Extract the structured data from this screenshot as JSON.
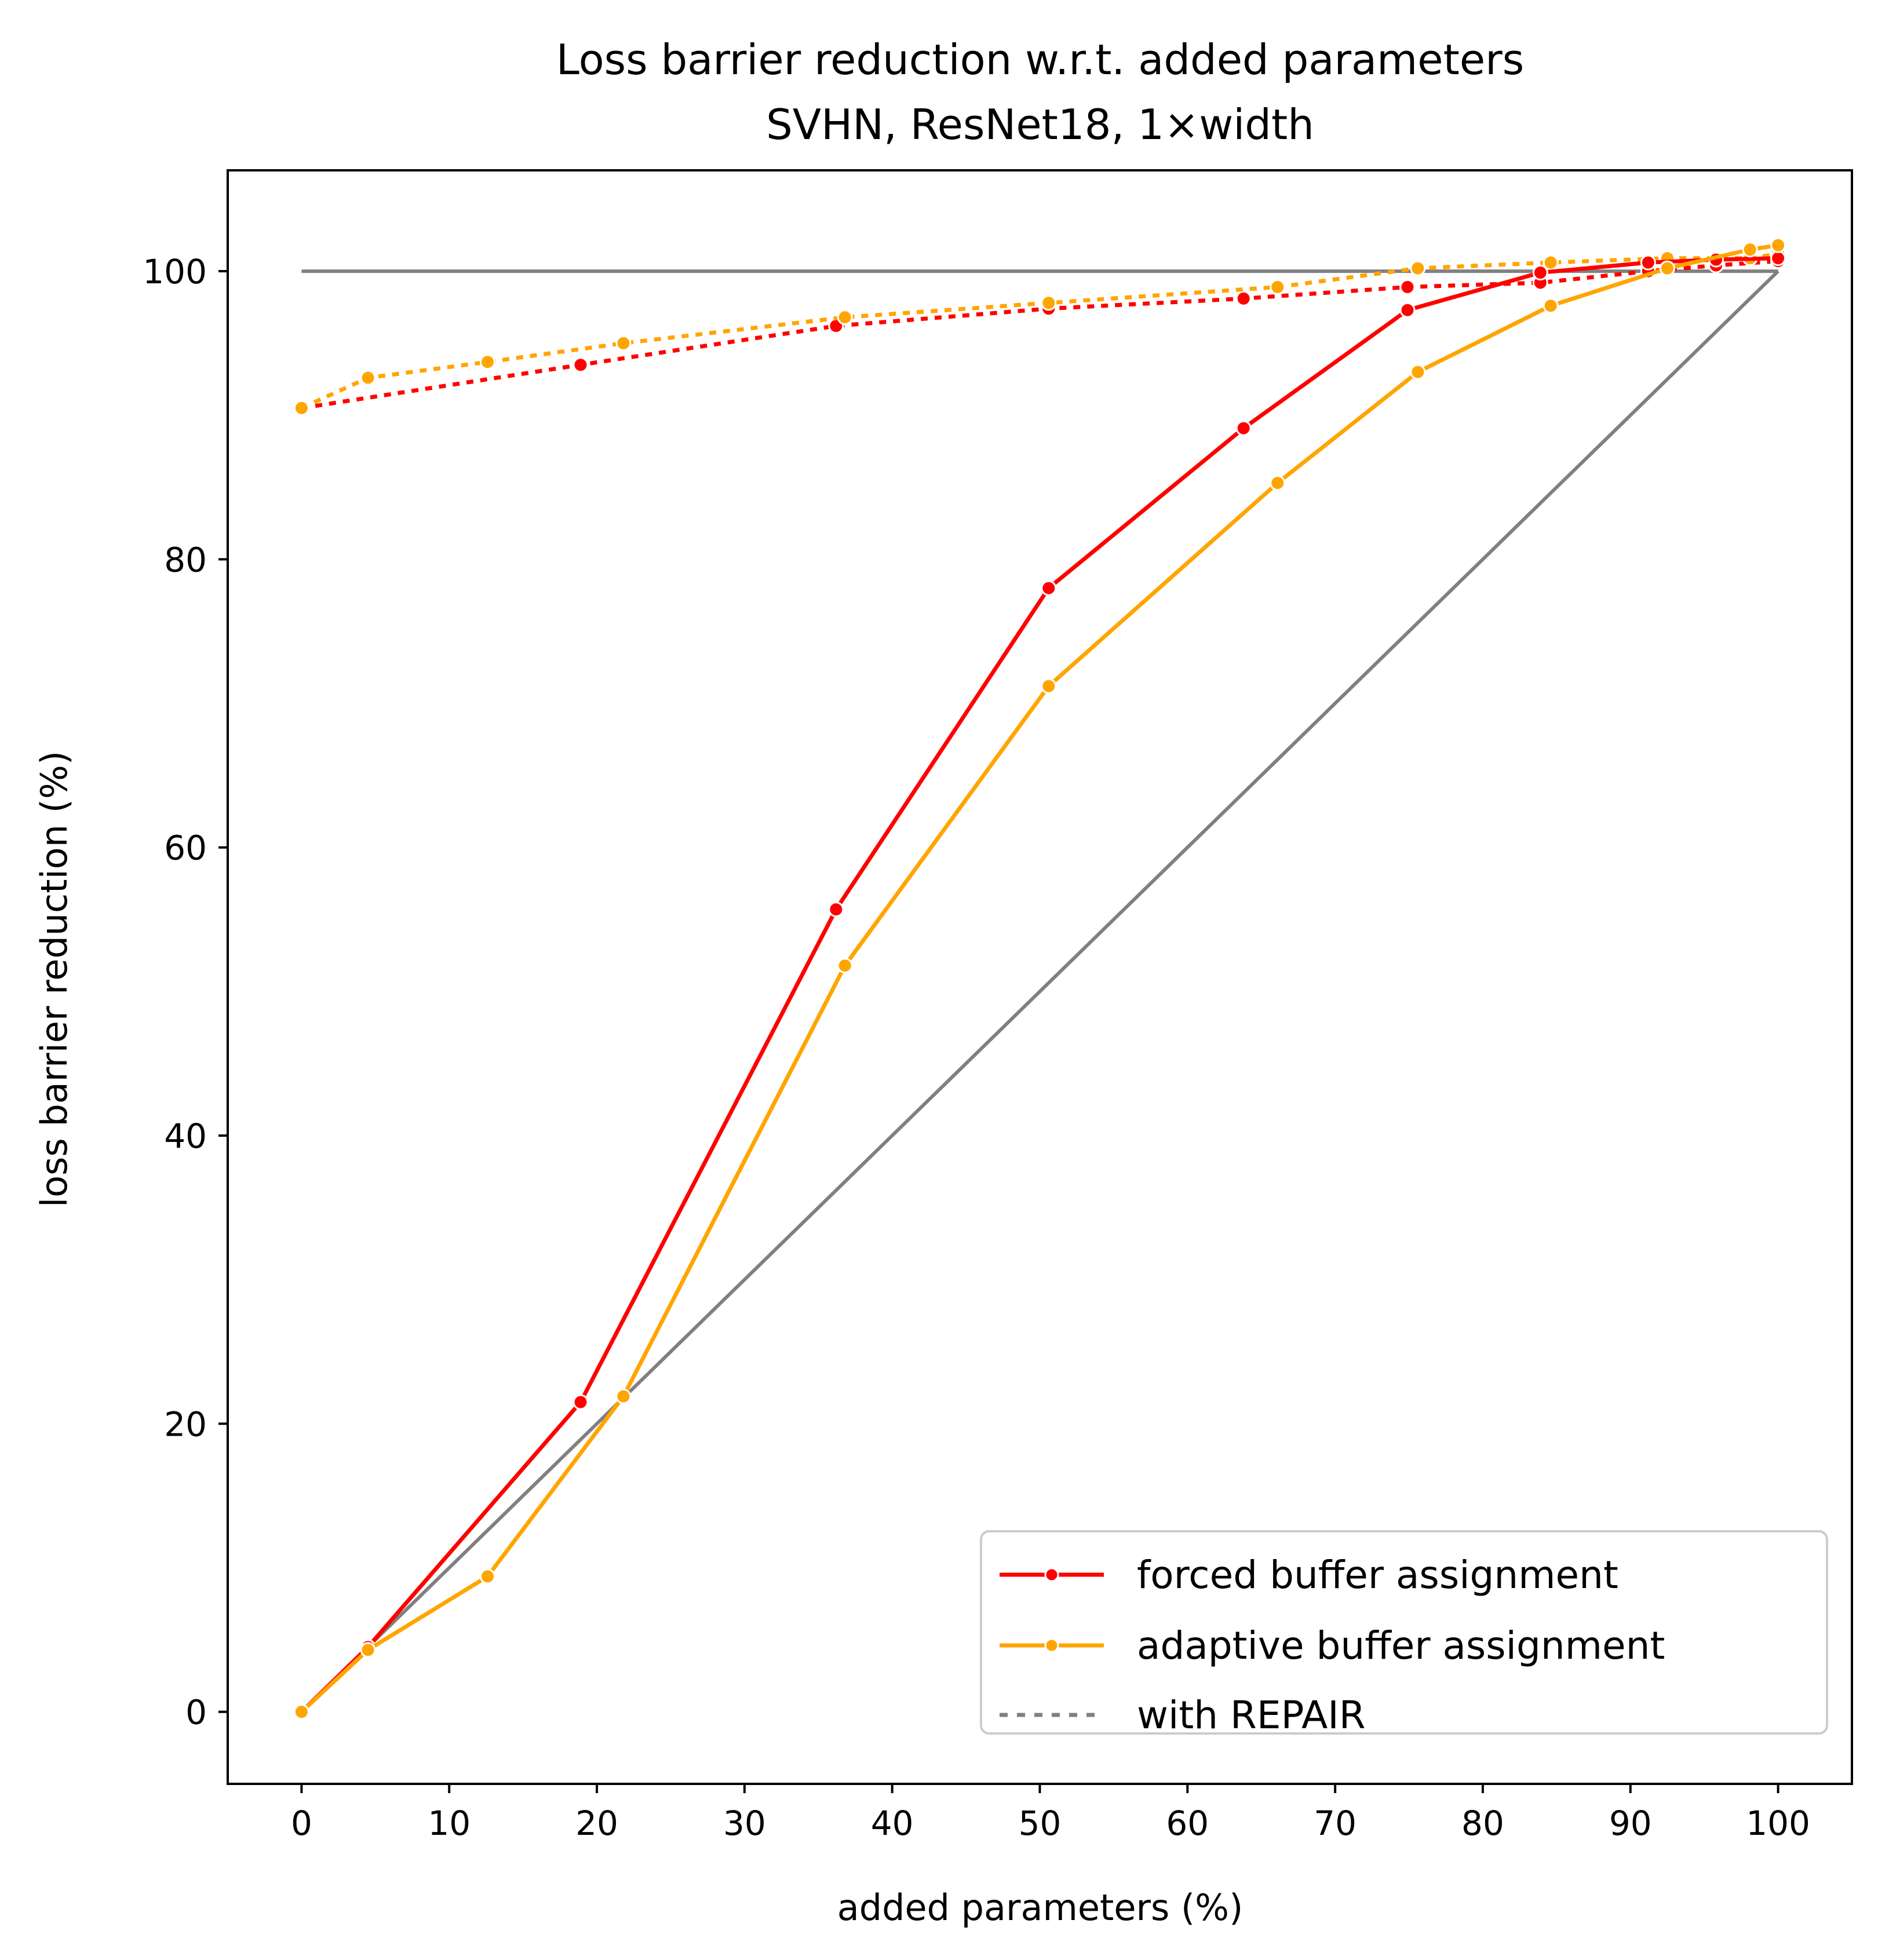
{
  "chart_data": {
    "type": "line",
    "title": "Loss barrier reduction w.r.t. added parameters",
    "subtitle": "SVHN, ResNet18, 1×width",
    "xlabel": "added parameters (%)",
    "ylabel": "loss barrier reduction (%)",
    "xlim": [
      -5,
      105
    ],
    "ylim": [
      -5,
      107
    ],
    "xticks": [
      "0",
      "10",
      "20",
      "30",
      "40",
      "50",
      "60",
      "70",
      "80",
      "90",
      "100"
    ],
    "yticks": [
      "0",
      "20",
      "40",
      "60",
      "80",
      "100"
    ],
    "grid": false,
    "legend_position": "lower-right",
    "legend": [
      {
        "label": "forced buffer assignment",
        "color": "#ff0000",
        "style": "solid-marker"
      },
      {
        "label": "adaptive buffer assignment",
        "color": "#ffa500",
        "style": "solid-marker"
      },
      {
        "label": "with REPAIR",
        "color": "#808080",
        "style": "dotted"
      }
    ],
    "reference_lines": [
      {
        "color": "#808080",
        "x": [
          0,
          100
        ],
        "y": [
          100,
          100
        ]
      },
      {
        "color": "#808080",
        "x": [
          0,
          100
        ],
        "y": [
          0,
          100
        ]
      }
    ],
    "series": [
      {
        "name": "forced buffer assignment",
        "color": "#ff0000",
        "dash": "solid",
        "x": [
          0,
          4.5,
          18.9,
          36.2,
          50.6,
          63.8,
          74.9,
          83.9,
          91.2,
          95.8,
          100
        ],
        "y": [
          0,
          4.5,
          21.5,
          55.7,
          78.0,
          89.1,
          97.3,
          99.9,
          100.6,
          100.8,
          100.9
        ]
      },
      {
        "name": "adaptive buffer assignment",
        "color": "#ffa500",
        "dash": "solid",
        "x": [
          0,
          4.5,
          12.6,
          21.8,
          36.8,
          50.6,
          66.1,
          75.6,
          84.6,
          92.5,
          98.1,
          100
        ],
        "y": [
          0,
          4.3,
          9.4,
          21.9,
          51.8,
          71.2,
          85.3,
          93.0,
          97.6,
          100.2,
          101.5,
          101.8
        ]
      },
      {
        "name": "forced buffer assignment with REPAIR",
        "color": "#ff0000",
        "dash": "dotted",
        "x": [
          0,
          18.9,
          36.2,
          50.6,
          63.8,
          74.9,
          83.9,
          91.2,
          95.8,
          100
        ],
        "y": [
          90.5,
          93.5,
          96.2,
          97.4,
          98.1,
          98.9,
          99.2,
          100.0,
          100.4,
          100.7
        ]
      },
      {
        "name": "adaptive buffer assignment with REPAIR",
        "color": "#ffa500",
        "dash": "dotted",
        "x": [
          0,
          4.5,
          12.6,
          21.8,
          36.8,
          50.6,
          66.1,
          75.6,
          84.6,
          92.5,
          98.1,
          100
        ],
        "y": [
          90.5,
          92.6,
          93.7,
          95.0,
          96.8,
          97.8,
          98.9,
          100.2,
          100.6,
          100.9,
          100.9,
          101.2
        ]
      }
    ]
  }
}
